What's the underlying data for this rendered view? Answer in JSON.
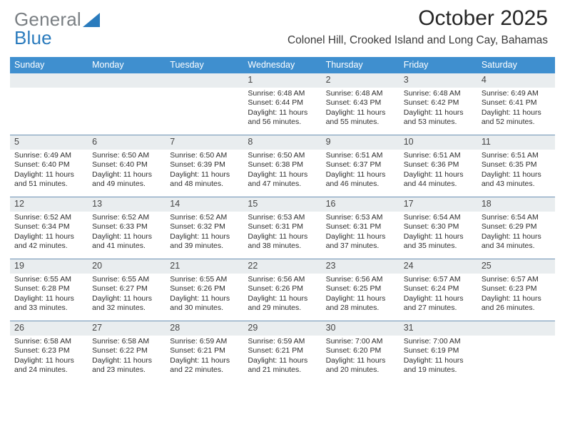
{
  "logo": {
    "part1": "General",
    "part2": "Blue"
  },
  "title": "October 2025",
  "subtitle": "Colonel Hill, Crooked Island and Long Cay, Bahamas",
  "colors": {
    "header_blue": "#3f8fcf",
    "row_separator": "#6a90b3",
    "daynum_bg": "#e9edef",
    "text": "#333333",
    "page_bg": "#ffffff",
    "logo_gray": "#7a7f83",
    "logo_blue": "#2a7bbd"
  },
  "calendar": {
    "type": "table",
    "columns": [
      "Sunday",
      "Monday",
      "Tuesday",
      "Wednesday",
      "Thursday",
      "Friday",
      "Saturday"
    ],
    "weeks": [
      [
        {
          "n": "",
          "t": ""
        },
        {
          "n": "",
          "t": ""
        },
        {
          "n": "",
          "t": ""
        },
        {
          "n": "1",
          "t": "Sunrise: 6:48 AM\nSunset: 6:44 PM\nDaylight: 11 hours and 56 minutes."
        },
        {
          "n": "2",
          "t": "Sunrise: 6:48 AM\nSunset: 6:43 PM\nDaylight: 11 hours and 55 minutes."
        },
        {
          "n": "3",
          "t": "Sunrise: 6:48 AM\nSunset: 6:42 PM\nDaylight: 11 hours and 53 minutes."
        },
        {
          "n": "4",
          "t": "Sunrise: 6:49 AM\nSunset: 6:41 PM\nDaylight: 11 hours and 52 minutes."
        }
      ],
      [
        {
          "n": "5",
          "t": "Sunrise: 6:49 AM\nSunset: 6:40 PM\nDaylight: 11 hours and 51 minutes."
        },
        {
          "n": "6",
          "t": "Sunrise: 6:50 AM\nSunset: 6:40 PM\nDaylight: 11 hours and 49 minutes."
        },
        {
          "n": "7",
          "t": "Sunrise: 6:50 AM\nSunset: 6:39 PM\nDaylight: 11 hours and 48 minutes."
        },
        {
          "n": "8",
          "t": "Sunrise: 6:50 AM\nSunset: 6:38 PM\nDaylight: 11 hours and 47 minutes."
        },
        {
          "n": "9",
          "t": "Sunrise: 6:51 AM\nSunset: 6:37 PM\nDaylight: 11 hours and 46 minutes."
        },
        {
          "n": "10",
          "t": "Sunrise: 6:51 AM\nSunset: 6:36 PM\nDaylight: 11 hours and 44 minutes."
        },
        {
          "n": "11",
          "t": "Sunrise: 6:51 AM\nSunset: 6:35 PM\nDaylight: 11 hours and 43 minutes."
        }
      ],
      [
        {
          "n": "12",
          "t": "Sunrise: 6:52 AM\nSunset: 6:34 PM\nDaylight: 11 hours and 42 minutes."
        },
        {
          "n": "13",
          "t": "Sunrise: 6:52 AM\nSunset: 6:33 PM\nDaylight: 11 hours and 41 minutes."
        },
        {
          "n": "14",
          "t": "Sunrise: 6:52 AM\nSunset: 6:32 PM\nDaylight: 11 hours and 39 minutes."
        },
        {
          "n": "15",
          "t": "Sunrise: 6:53 AM\nSunset: 6:31 PM\nDaylight: 11 hours and 38 minutes."
        },
        {
          "n": "16",
          "t": "Sunrise: 6:53 AM\nSunset: 6:31 PM\nDaylight: 11 hours and 37 minutes."
        },
        {
          "n": "17",
          "t": "Sunrise: 6:54 AM\nSunset: 6:30 PM\nDaylight: 11 hours and 35 minutes."
        },
        {
          "n": "18",
          "t": "Sunrise: 6:54 AM\nSunset: 6:29 PM\nDaylight: 11 hours and 34 minutes."
        }
      ],
      [
        {
          "n": "19",
          "t": "Sunrise: 6:55 AM\nSunset: 6:28 PM\nDaylight: 11 hours and 33 minutes."
        },
        {
          "n": "20",
          "t": "Sunrise: 6:55 AM\nSunset: 6:27 PM\nDaylight: 11 hours and 32 minutes."
        },
        {
          "n": "21",
          "t": "Sunrise: 6:55 AM\nSunset: 6:26 PM\nDaylight: 11 hours and 30 minutes."
        },
        {
          "n": "22",
          "t": "Sunrise: 6:56 AM\nSunset: 6:26 PM\nDaylight: 11 hours and 29 minutes."
        },
        {
          "n": "23",
          "t": "Sunrise: 6:56 AM\nSunset: 6:25 PM\nDaylight: 11 hours and 28 minutes."
        },
        {
          "n": "24",
          "t": "Sunrise: 6:57 AM\nSunset: 6:24 PM\nDaylight: 11 hours and 27 minutes."
        },
        {
          "n": "25",
          "t": "Sunrise: 6:57 AM\nSunset: 6:23 PM\nDaylight: 11 hours and 26 minutes."
        }
      ],
      [
        {
          "n": "26",
          "t": "Sunrise: 6:58 AM\nSunset: 6:23 PM\nDaylight: 11 hours and 24 minutes."
        },
        {
          "n": "27",
          "t": "Sunrise: 6:58 AM\nSunset: 6:22 PM\nDaylight: 11 hours and 23 minutes."
        },
        {
          "n": "28",
          "t": "Sunrise: 6:59 AM\nSunset: 6:21 PM\nDaylight: 11 hours and 22 minutes."
        },
        {
          "n": "29",
          "t": "Sunrise: 6:59 AM\nSunset: 6:21 PM\nDaylight: 11 hours and 21 minutes."
        },
        {
          "n": "30",
          "t": "Sunrise: 7:00 AM\nSunset: 6:20 PM\nDaylight: 11 hours and 20 minutes."
        },
        {
          "n": "31",
          "t": "Sunrise: 7:00 AM\nSunset: 6:19 PM\nDaylight: 11 hours and 19 minutes."
        },
        {
          "n": "",
          "t": ""
        }
      ]
    ]
  }
}
